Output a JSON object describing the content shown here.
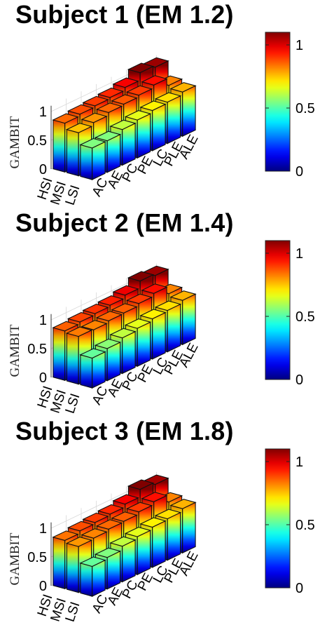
{
  "chart_data": [
    {
      "type": "bar3d",
      "title": "Subject 1 (EM 1.2)",
      "zlabel": "GAMBIT",
      "rows": [
        "HSI",
        "MSI",
        "LSI"
      ],
      "columns": [
        "AC",
        "AE",
        "PC",
        "PE",
        "LC",
        "PLE",
        "ALE"
      ],
      "zticks": [
        "0",
        "0.5",
        "1"
      ],
      "zlim": [
        0,
        1.1
      ],
      "values": [
        [
          0.85,
          0.88,
          0.9,
          0.92,
          0.97,
          1.1,
          1.07
        ],
        [
          0.75,
          0.8,
          0.85,
          0.87,
          0.9,
          0.95,
          0.82
        ],
        [
          0.55,
          0.55,
          0.62,
          0.66,
          0.7,
          0.72,
          0.77
        ]
      ],
      "colorbar": {
        "ticks": [
          "0",
          "0.5",
          "1"
        ],
        "colormap": "jet",
        "range": [
          0,
          1.1
        ]
      },
      "grid": true
    },
    {
      "type": "bar3d",
      "title": "Subject 2 (EM 1.4)",
      "zlabel": "GAMBIT",
      "rows": [
        "HSI",
        "MSI",
        "LSI"
      ],
      "columns": [
        "AC",
        "AE",
        "PC",
        "PE",
        "LC",
        "PLE",
        "ALE"
      ],
      "zticks": [
        "0",
        "0.5",
        "1"
      ],
      "zlim": [
        0,
        1.1
      ],
      "values": [
        [
          0.86,
          0.89,
          0.91,
          0.93,
          0.98,
          1.1,
          1.07
        ],
        [
          0.83,
          0.82,
          0.85,
          0.86,
          0.9,
          0.95,
          0.82
        ],
        [
          0.52,
          0.56,
          0.62,
          0.66,
          0.7,
          0.72,
          0.77
        ]
      ],
      "colorbar": {
        "ticks": [
          "0",
          "0.5",
          "1"
        ],
        "colormap": "jet",
        "range": [
          0,
          1.1
        ]
      },
      "grid": true
    },
    {
      "type": "bar3d",
      "title": "Subject 3 (EM 1.8)",
      "zlabel": "GAMBIT",
      "rows": [
        "HSI",
        "MSI",
        "LSI"
      ],
      "columns": [
        "AC",
        "AE",
        "PC",
        "PE",
        "LC",
        "PLE",
        "ALE"
      ],
      "zticks": [
        "0",
        "0.5",
        "1"
      ],
      "zlim": [
        0,
        1.1
      ],
      "values": [
        [
          0.84,
          0.88,
          0.9,
          0.92,
          0.97,
          1.1,
          1.06
        ],
        [
          0.8,
          0.82,
          0.85,
          0.86,
          0.9,
          0.95,
          0.82
        ],
        [
          0.52,
          0.55,
          0.62,
          0.66,
          0.7,
          0.72,
          0.77
        ]
      ],
      "colorbar": {
        "ticks": [
          "0",
          "0.5",
          "1"
        ],
        "colormap": "jet",
        "range": [
          0,
          1.1
        ]
      },
      "grid": true
    }
  ]
}
